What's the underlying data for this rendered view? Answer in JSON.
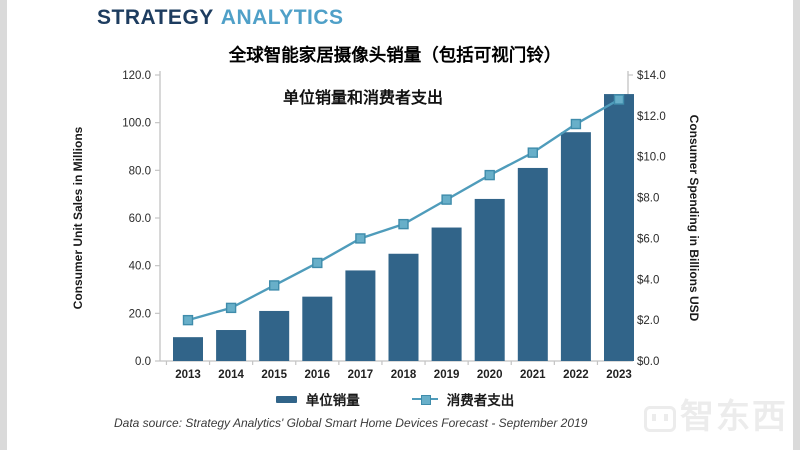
{
  "logo": {
    "part1": "STRATEGY",
    "part2": "ANALYTICS"
  },
  "chart_data": {
    "type": "bar+line combo",
    "title": "全球智能家居摄像头销量（包括可视门铃）",
    "subtitle": "单位销量和消费者支出",
    "categories": [
      "2013",
      "2014",
      "2015",
      "2016",
      "2017",
      "2018",
      "2019",
      "2020",
      "2021",
      "2022",
      "2023"
    ],
    "series": [
      {
        "name": "单位销量",
        "type": "bar",
        "axis": "left",
        "values": [
          10,
          13,
          21,
          27,
          38,
          45,
          56,
          68,
          81,
          96,
          112
        ],
        "color": "#316489"
      },
      {
        "name": "消费者支出",
        "type": "line",
        "axis": "right",
        "values": [
          2.0,
          2.6,
          3.7,
          4.8,
          6.0,
          6.7,
          7.9,
          9.1,
          10.2,
          11.6,
          12.8
        ],
        "color": "#4f9cbb",
        "marker_color": "#68afc9",
        "marker_border": "#3f8cab"
      }
    ],
    "left_axis": {
      "label": "Consumer Unit Sales in Millions",
      "min": 0,
      "max": 120,
      "step": 20,
      "tick_labels": [
        "0.0",
        "20.0",
        "40.0",
        "60.0",
        "80.0",
        "100.0",
        "120.0"
      ]
    },
    "right_axis": {
      "label": "Consumer Spending in Billions USD",
      "min": 0,
      "max": 14,
      "step": 2,
      "tick_labels": [
        "$0.0",
        "$2.0",
        "$4.0",
        "$6.0",
        "$8.0",
        "$10.0",
        "$12.0",
        "$14.0"
      ]
    },
    "grid": false,
    "legend_position": "bottom",
    "axis_color": "#c4c4c4",
    "tick_text_color": "#2b2b2b"
  },
  "footer": {
    "source": "Data source: Strategy Analytics' Global Smart Home Devices Forecast - September 2019"
  },
  "watermark": {
    "text": "智东西"
  }
}
